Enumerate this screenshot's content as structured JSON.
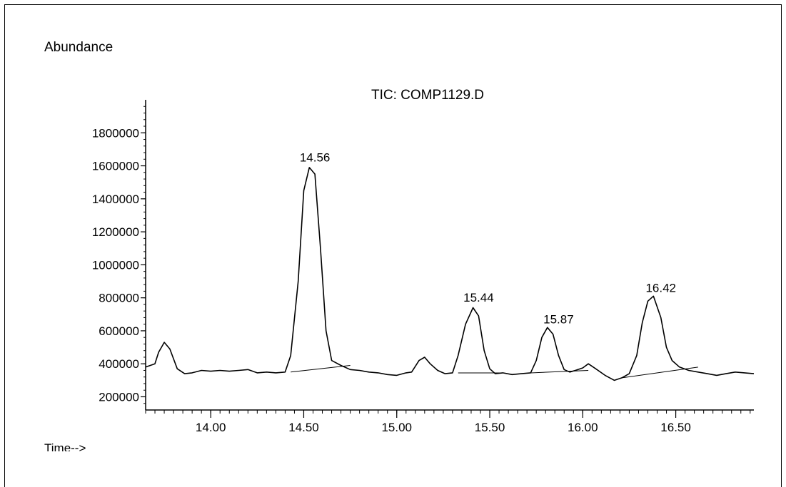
{
  "chart_data": {
    "type": "line",
    "title": "TIC: COMP1129.D",
    "ylabel": "Abundance",
    "xlabel": "Time-->",
    "xlim": [
      13.65,
      16.92
    ],
    "ylim": [
      120000,
      2000000
    ],
    "y_ticks": [
      "200000",
      "400000",
      "600000",
      "800000",
      "1000000",
      "1200000",
      "1400000",
      "1600000",
      "1800000"
    ],
    "y_tick_values": [
      200000,
      400000,
      600000,
      800000,
      1000000,
      1200000,
      1400000,
      1600000,
      1800000
    ],
    "x_ticks": [
      "14.00",
      "14.50",
      "15.00",
      "15.50",
      "16.00",
      "16.50"
    ],
    "x_tick_values": [
      14.0,
      14.5,
      15.0,
      15.5,
      16.0,
      16.5
    ],
    "series": [
      {
        "values_x": [
          13.65,
          13.7,
          13.72,
          13.75,
          13.78,
          13.82,
          13.86,
          13.9,
          13.95,
          14.0,
          14.05,
          14.1,
          14.15,
          14.2,
          14.25,
          14.3,
          14.35,
          14.4,
          14.43,
          14.47,
          14.5,
          14.53,
          14.56,
          14.59,
          14.62,
          14.65,
          14.7,
          14.75,
          14.8,
          14.85,
          14.9,
          14.95,
          15.0,
          15.05,
          15.08,
          15.12,
          15.15,
          15.18,
          15.22,
          15.26,
          15.3,
          15.33,
          15.37,
          15.41,
          15.44,
          15.47,
          15.5,
          15.53,
          15.57,
          15.62,
          15.67,
          15.72,
          15.75,
          15.78,
          15.81,
          15.84,
          15.87,
          15.9,
          15.93,
          15.96,
          16.0,
          16.03,
          16.07,
          16.12,
          16.17,
          16.21,
          16.25,
          16.29,
          16.32,
          16.35,
          16.38,
          16.42,
          16.45,
          16.48,
          16.52,
          16.57,
          16.62,
          16.67,
          16.72,
          16.77,
          16.82,
          16.87,
          16.92
        ],
        "values_y": [
          380000,
          400000,
          470000,
          530000,
          490000,
          370000,
          340000,
          345000,
          360000,
          355000,
          360000,
          355000,
          360000,
          365000,
          345000,
          350000,
          345000,
          350000,
          450000,
          900000,
          1450000,
          1590000,
          1550000,
          1100000,
          600000,
          420000,
          390000,
          365000,
          360000,
          350000,
          345000,
          335000,
          330000,
          345000,
          350000,
          420000,
          440000,
          400000,
          360000,
          340000,
          345000,
          450000,
          640000,
          740000,
          690000,
          480000,
          370000,
          340000,
          345000,
          335000,
          340000,
          345000,
          420000,
          560000,
          620000,
          580000,
          450000,
          365000,
          350000,
          360000,
          375000,
          400000,
          370000,
          330000,
          300000,
          315000,
          340000,
          450000,
          650000,
          780000,
          810000,
          680000,
          500000,
          420000,
          380000,
          360000,
          350000,
          340000,
          330000,
          340000,
          350000,
          345000,
          340000
        ]
      }
    ],
    "peaks": [
      {
        "label": "14.56",
        "x": 14.56,
        "y": 1600000
      },
      {
        "label": "15.44",
        "x": 15.44,
        "y": 750000
      },
      {
        "label": "15.87",
        "x": 15.87,
        "y": 620000
      },
      {
        "label": "16.42",
        "x": 16.42,
        "y": 810000
      }
    ],
    "baselines": [
      {
        "x1": 14.43,
        "y1": 350000,
        "x2": 14.75,
        "y2": 390000
      },
      {
        "x1": 15.33,
        "y1": 345000,
        "x2": 15.57,
        "y2": 345000
      },
      {
        "x1": 15.72,
        "y1": 345000,
        "x2": 16.03,
        "y2": 360000
      },
      {
        "x1": 16.21,
        "y1": 315000,
        "x2": 16.62,
        "y2": 380000
      }
    ]
  }
}
